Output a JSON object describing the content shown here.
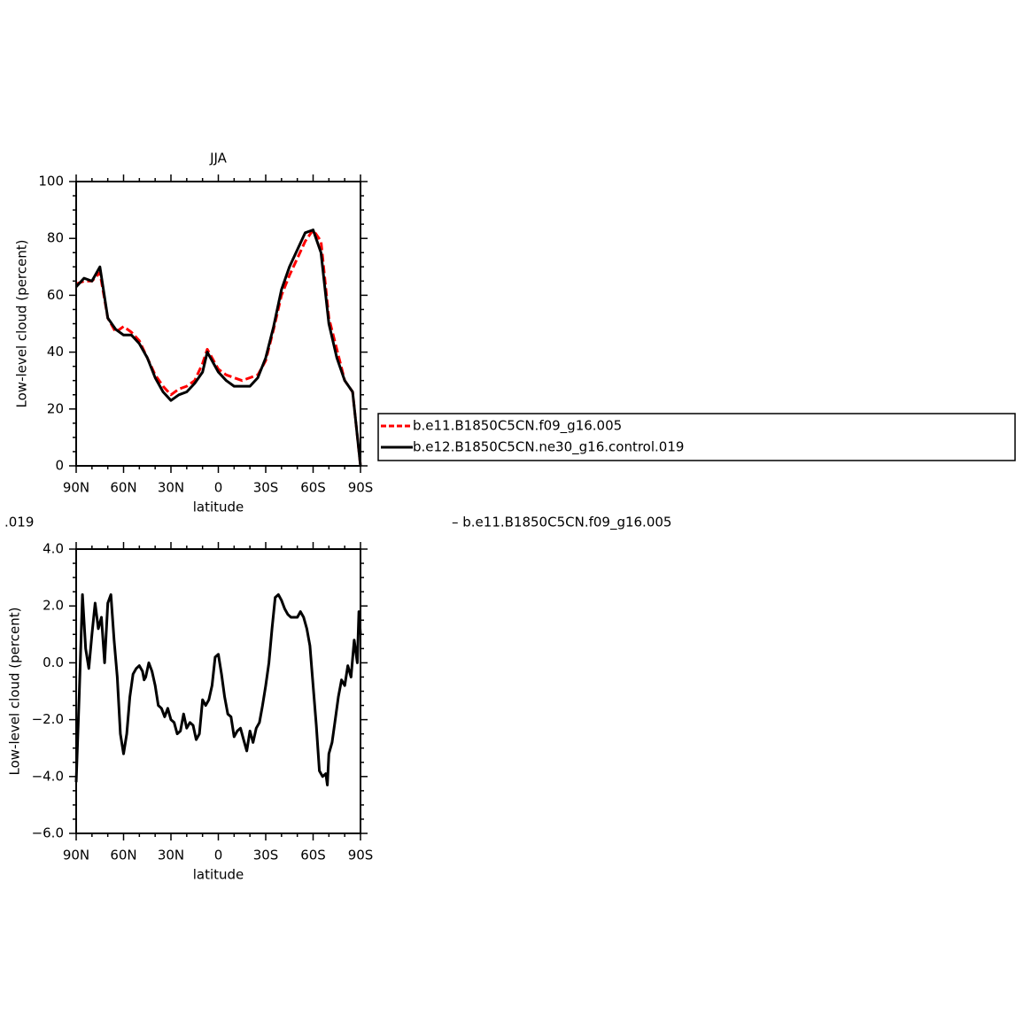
{
  "chart_data": [
    {
      "type": "line",
      "title": "JJA",
      "x_label": "latitude",
      "y_label": "Low-level cloud (percent)",
      "xlim": [
        90,
        -90
      ],
      "ylim": [
        0,
        100
      ],
      "xticks": [
        {
          "value": 90,
          "label": "90N"
        },
        {
          "value": 60,
          "label": "60N"
        },
        {
          "value": 30,
          "label": "30N"
        },
        0,
        {
          "value": -30,
          "label": "30S"
        },
        {
          "value": -60,
          "label": "60S"
        },
        {
          "value": -90,
          "label": "90S"
        }
      ],
      "yticks": [
        0,
        20,
        40,
        60,
        80,
        100
      ],
      "legend": "right",
      "x": [
        90,
        85,
        80,
        75,
        70,
        65,
        60,
        55,
        50,
        45,
        40,
        35,
        30,
        25,
        20,
        15,
        10,
        7,
        5,
        0,
        -5,
        -10,
        -15,
        -20,
        -25,
        -30,
        -35,
        -40,
        -45,
        -50,
        -55,
        -60,
        -65,
        -70,
        -75,
        -80,
        -85,
        -90
      ],
      "series": [
        {
          "name": "b.e11.B1850C5CN.f09_g16.005",
          "color": "#ff0000",
          "dashed": true,
          "values": [
            64,
            65,
            65,
            68,
            52,
            47,
            49,
            47,
            44,
            38,
            32,
            28,
            25,
            27,
            28,
            30,
            36,
            41,
            39,
            34,
            32,
            31,
            30,
            31,
            32,
            37,
            48,
            60,
            67,
            73,
            79,
            83,
            79,
            52,
            41,
            30,
            26,
            0
          ]
        },
        {
          "name": "b.e12.B1850C5CN.ne30_g16.control.019",
          "color": "#000000",
          "dashed": false,
          "values": [
            63,
            66,
            65,
            70,
            52,
            48,
            46,
            46,
            43,
            38,
            31,
            26,
            23,
            25,
            26,
            29,
            33,
            40,
            38,
            33,
            30,
            28,
            28,
            28,
            31,
            38,
            49,
            62,
            70,
            76,
            82,
            83,
            75,
            50,
            38,
            30,
            26,
            0
          ]
        }
      ]
    },
    {
      "type": "line",
      "title_fragments": [
        ".019",
        "– b.e11.B1850C5CN.f09_g16.005"
      ],
      "x_label": "latitude",
      "y_label": "Low-level cloud (percent)",
      "xlim": [
        90,
        -90
      ],
      "ylim": [
        -6,
        4
      ],
      "xticks": [
        {
          "value": 90,
          "label": "90N"
        },
        {
          "value": 60,
          "label": "60N"
        },
        {
          "value": 30,
          "label": "30N"
        },
        0,
        {
          "value": -30,
          "label": "30S"
        },
        {
          "value": -60,
          "label": "60S"
        },
        {
          "value": -90,
          "label": "90S"
        }
      ],
      "yticks": [
        {
          "value": -6,
          "label": "−6.0"
        },
        {
          "value": -4,
          "label": "−4.0"
        },
        {
          "value": -2,
          "label": "−2.0"
        },
        {
          "value": 0,
          "label": "0.0"
        },
        {
          "value": 2,
          "label": "2.0"
        },
        {
          "value": 4,
          "label": "4.0"
        }
      ],
      "color": "#000000",
      "x": [
        90,
        88,
        86,
        84,
        82,
        80,
        78,
        76,
        74,
        72,
        70,
        68,
        66,
        64,
        62,
        60,
        58,
        56,
        54,
        52,
        50,
        48,
        47,
        46,
        44,
        42,
        40,
        38,
        36,
        34,
        32,
        30,
        28,
        26,
        24,
        22,
        20,
        18,
        16,
        14,
        12,
        10,
        8,
        6,
        4,
        2,
        0,
        -2,
        -4,
        -6,
        -8,
        -10,
        -12,
        -14,
        -16,
        -18,
        -20,
        -22,
        -24,
        -26,
        -28,
        -30,
        -32,
        -34,
        -36,
        -38,
        -40,
        -42,
        -44,
        -46,
        -48,
        -50,
        -52,
        -54,
        -56,
        -58,
        -60,
        -62,
        -64,
        -66,
        -68,
        -69,
        -70,
        -72,
        -74,
        -76,
        -78,
        -80,
        -82,
        -84,
        -86,
        -88,
        -89,
        -90
      ],
      "values": [
        -4.2,
        -1,
        2.4,
        0.5,
        -0.2,
        1.0,
        2.1,
        1.2,
        1.6,
        0.0,
        2.1,
        2.4,
        0.8,
        -0.5,
        -2.5,
        -3.2,
        -2.5,
        -1.2,
        -0.4,
        -0.2,
        -0.1,
        -0.3,
        -0.6,
        -0.5,
        0.0,
        -0.3,
        -0.8,
        -1.5,
        -1.6,
        -1.9,
        -1.6,
        -2.0,
        -2.1,
        -2.5,
        -2.4,
        -1.8,
        -2.3,
        -2.1,
        -2.2,
        -2.7,
        -2.5,
        -1.3,
        -1.5,
        -1.3,
        -0.8,
        0.2,
        0.3,
        -0.4,
        -1.2,
        -1.8,
        -1.9,
        -2.6,
        -2.4,
        -2.3,
        -2.7,
        -3.1,
        -2.4,
        -2.8,
        -2.3,
        -2.1,
        -1.5,
        -0.8,
        0.0,
        1.2,
        2.3,
        2.4,
        2.2,
        1.9,
        1.7,
        1.6,
        1.6,
        1.6,
        1.8,
        1.6,
        1.2,
        0.6,
        -0.8,
        -2.2,
        -3.8,
        -4.0,
        -3.9,
        -4.3,
        -3.2,
        -2.8,
        -2.0,
        -1.2,
        -0.6,
        -0.8,
        -0.1,
        -0.5,
        0.8,
        0.0,
        1.8,
        1.0
      ]
    }
  ]
}
